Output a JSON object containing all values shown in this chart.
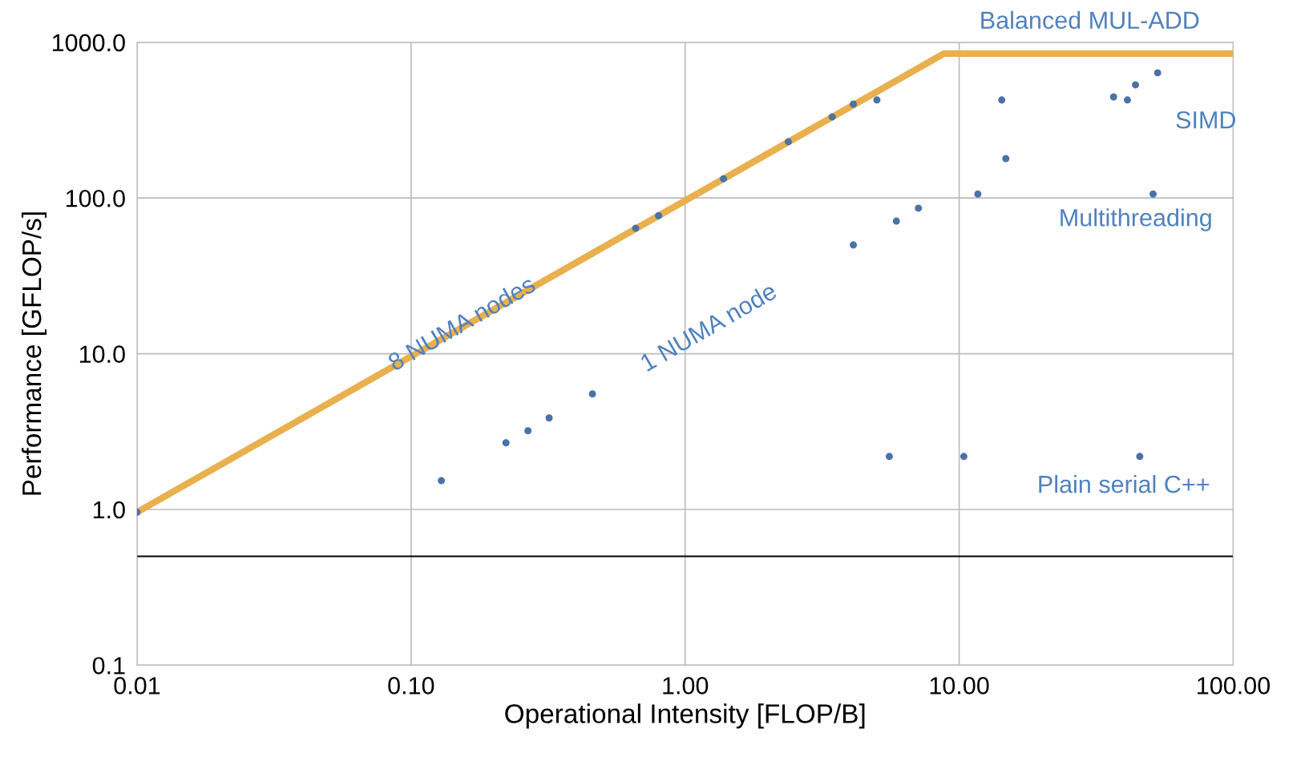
{
  "chart_data": {
    "type": "scatter",
    "xlabel": "Operational Intensity [FLOP/B]",
    "ylabel": "Performance [GFLOP/s]",
    "log": "xy",
    "grid": true,
    "legend": false,
    "xlim": [
      0.01,
      100
    ],
    "ylim": [
      0.1,
      1000
    ],
    "xticks": [
      0.01,
      {
        "value": 0.1,
        "label": "0.10"
      },
      {
        "value": 1,
        "label": "1.00"
      },
      {
        "value": 10,
        "label": "10.00"
      },
      {
        "value": 100,
        "label": "100.00"
      }
    ],
    "yticks": [
      0.1,
      {
        "value": 1,
        "label": "1.0"
      },
      {
        "value": 10,
        "label": "10.0"
      },
      {
        "value": 100,
        "label": "100.0"
      },
      {
        "value": 1000,
        "label": "1000.0"
      }
    ],
    "ref_lines": [
      {
        "axis": "y",
        "value": 0.5,
        "label": null,
        "color": "#000000"
      }
    ],
    "series": [
      {
        "type": "line",
        "color": "#e8b04e",
        "line_style": "solid",
        "marker": "none",
        "x": [
          0.01,
          8.8,
          100
        ],
        "values": [
          0.96,
          847,
          847
        ]
      },
      {
        "color": "#4a72a8",
        "marker": "circle",
        "x": [
          0.01,
          0.66,
          0.8,
          1.38,
          2.38,
          3.44,
          4.11,
          5.01,
          14.3,
          36.6,
          41.1,
          44,
          53,
          4.11,
          5.9,
          7.1,
          11.7,
          14.8,
          51,
          0.129,
          0.222,
          0.267,
          0.319,
          0.459,
          5.56,
          10.4,
          45.6
        ],
        "values": [
          0.96,
          64,
          77,
          133,
          230,
          332,
          401,
          426,
          426,
          446,
          426,
          533,
          637,
          50,
          71,
          86,
          106,
          179,
          106,
          1.53,
          2.68,
          3.2,
          3.87,
          5.52,
          2.19,
          2.19,
          2.19
        ]
      }
    ],
    "annotations": [
      "Balanced MUL-ADD",
      "SIMD",
      "Multithreading",
      "Plain serial C++",
      "8 NUMA nodes",
      "1 NUMA node"
    ]
  }
}
